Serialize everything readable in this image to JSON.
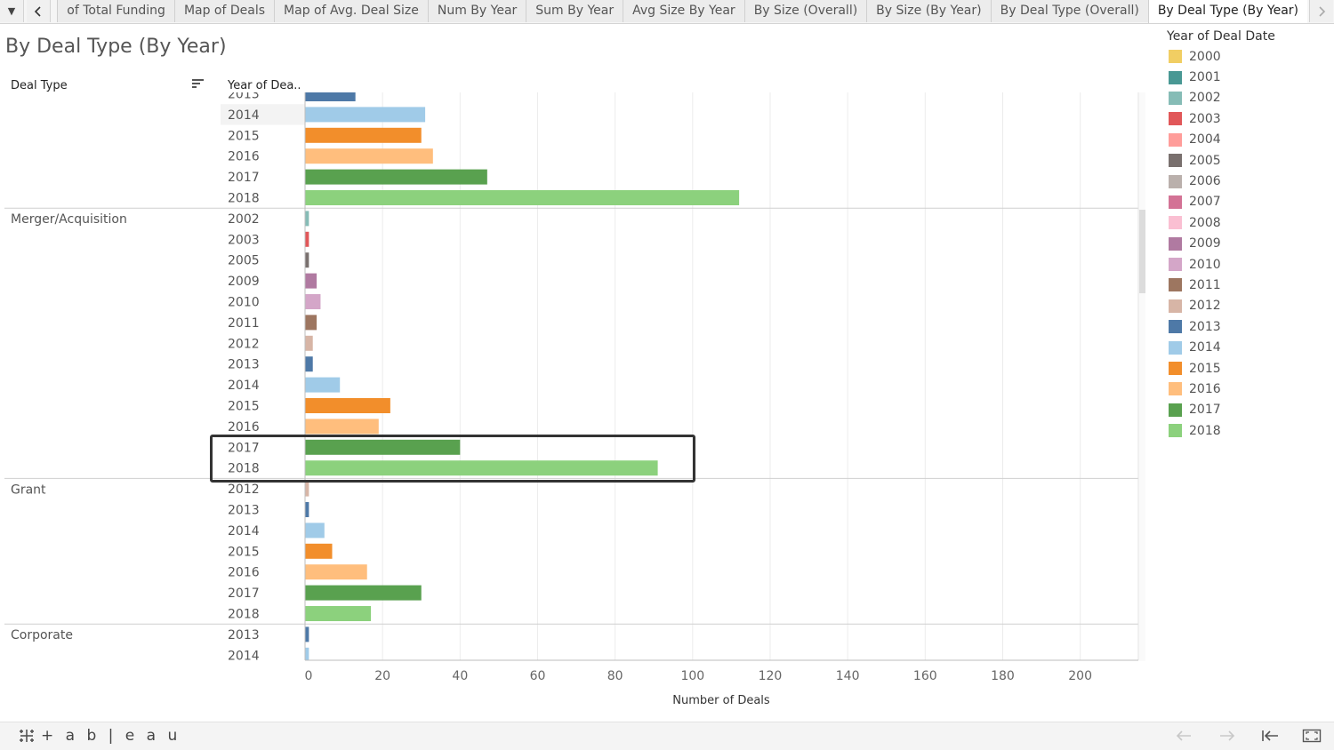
{
  "tabs": [
    "of Total Funding",
    "Map of Deals",
    "Map of Avg. Deal Size",
    "Num By Year",
    "Sum By Year",
    "Avg Size By Year",
    "By Size (Overall)",
    "By Size (By Year)",
    "By Deal Type (Overall)",
    "By Deal Type (By Year)"
  ],
  "active_tab_index": 9,
  "sheet_title": "By Deal Type (By Year)",
  "headers": {
    "deal_type": "Deal Type",
    "year": "Year of Dea.."
  },
  "legend": {
    "title": "Year of Deal Date",
    "items": [
      {
        "label": "2000",
        "color": "#f1ce63"
      },
      {
        "label": "2001",
        "color": "#499894"
      },
      {
        "label": "2002",
        "color": "#86bcb6"
      },
      {
        "label": "2003",
        "color": "#e15759"
      },
      {
        "label": "2004",
        "color": "#ff9d9a"
      },
      {
        "label": "2005",
        "color": "#79706e"
      },
      {
        "label": "2006",
        "color": "#bab0ac"
      },
      {
        "label": "2007",
        "color": "#d37295"
      },
      {
        "label": "2008",
        "color": "#fabfd2"
      },
      {
        "label": "2009",
        "color": "#b07aa1"
      },
      {
        "label": "2010",
        "color": "#d4a6c8"
      },
      {
        "label": "2011",
        "color": "#9d7660"
      },
      {
        "label": "2012",
        "color": "#d7b5a6"
      },
      {
        "label": "2013",
        "color": "#4e79a7"
      },
      {
        "label": "2014",
        "color": "#a0cbe8"
      },
      {
        "label": "2015",
        "color": "#f28e2b"
      },
      {
        "label": "2016",
        "color": "#ffbe7d"
      },
      {
        "label": "2017",
        "color": "#59a14f"
      },
      {
        "label": "2018",
        "color": "#8cd17d"
      }
    ]
  },
  "chart_data": {
    "type": "bar",
    "orientation": "horizontal",
    "xlabel": "Number of Deals",
    "ylabel": "",
    "xlim": [
      0,
      215
    ],
    "x_ticks": [
      0,
      20,
      40,
      60,
      80,
      100,
      120,
      140,
      160,
      180,
      200
    ],
    "grid": true,
    "legend_position": "right",
    "groups": [
      {
        "deal_type": "",
        "rows": [
          {
            "year": "2013",
            "value": 13
          },
          {
            "year": "2014",
            "value": 31
          },
          {
            "year": "2015",
            "value": 30
          },
          {
            "year": "2016",
            "value": 33
          },
          {
            "year": "2017",
            "value": 47
          },
          {
            "year": "2018",
            "value": 112
          }
        ]
      },
      {
        "deal_type": "Merger/Acquisition",
        "rows": [
          {
            "year": "2002",
            "value": 1
          },
          {
            "year": "2003",
            "value": 1
          },
          {
            "year": "2005",
            "value": 1
          },
          {
            "year": "2009",
            "value": 3
          },
          {
            "year": "2010",
            "value": 4
          },
          {
            "year": "2011",
            "value": 3
          },
          {
            "year": "2012",
            "value": 2
          },
          {
            "year": "2013",
            "value": 2
          },
          {
            "year": "2014",
            "value": 9
          },
          {
            "year": "2015",
            "value": 22
          },
          {
            "year": "2016",
            "value": 19
          },
          {
            "year": "2017",
            "value": 40
          },
          {
            "year": "2018",
            "value": 91
          }
        ]
      },
      {
        "deal_type": "Grant",
        "rows": [
          {
            "year": "2012",
            "value": 1
          },
          {
            "year": "2013",
            "value": 1
          },
          {
            "year": "2014",
            "value": 5
          },
          {
            "year": "2015",
            "value": 7
          },
          {
            "year": "2016",
            "value": 16
          },
          {
            "year": "2017",
            "value": 30
          },
          {
            "year": "2018",
            "value": 17
          }
        ]
      },
      {
        "deal_type": "Corporate",
        "rows": [
          {
            "year": "2013",
            "value": 1
          },
          {
            "year": "2014",
            "value": 1
          }
        ]
      }
    ]
  },
  "footer": {
    "brand": "+ a b | e a u"
  }
}
